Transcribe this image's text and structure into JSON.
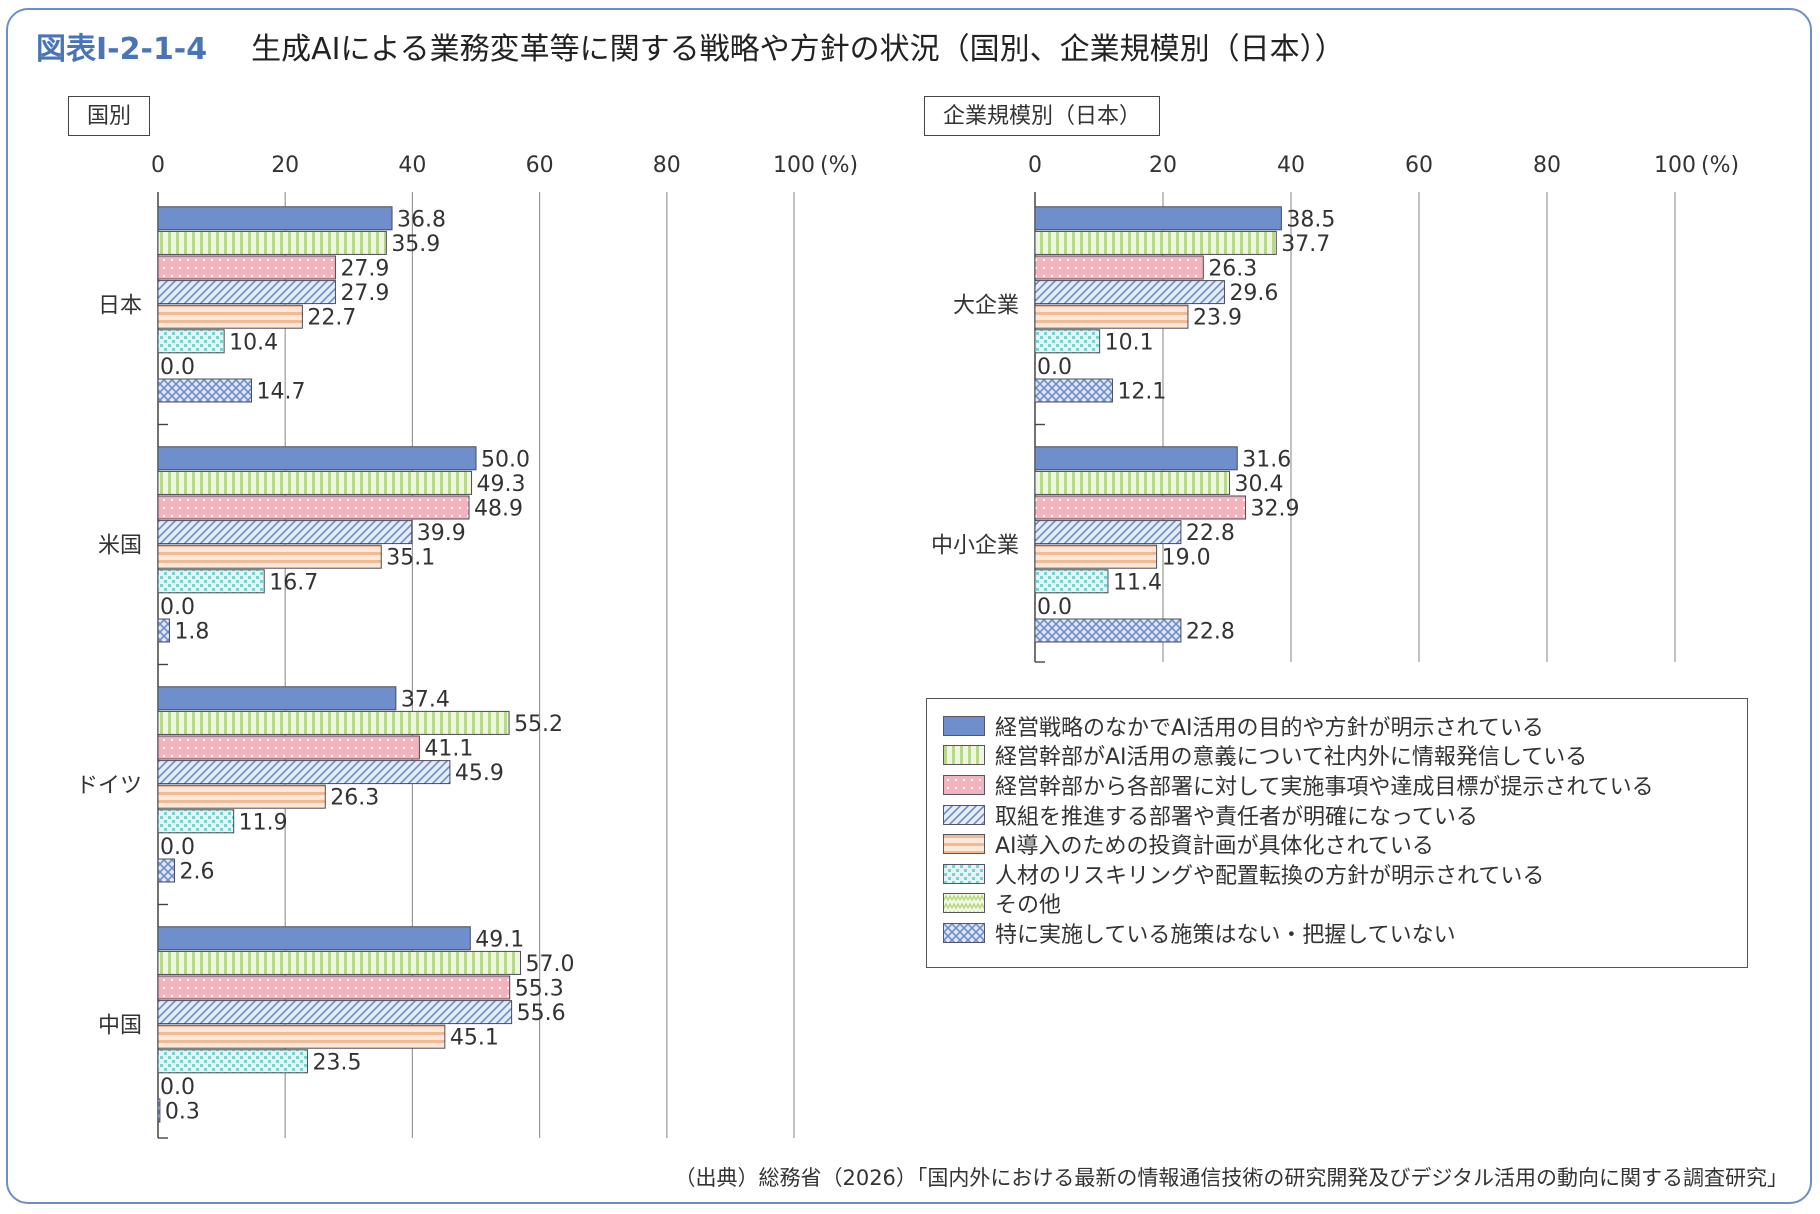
{
  "figure": {
    "number": "図表Ⅰ-2-1-4",
    "title": "生成AIによる業務変革等に関する戦略や方針の状況（国別、企業規模別（日本））",
    "source": "（出典）総務省（2026）「国内外における最新の情報通信技術の研究開発及びデジタル活用の動向に関する調査研究」"
  },
  "legend": {
    "items": [
      {
        "label": "経営戦略のなかでAI活用の目的や方針が明示されている",
        "color": "#6f8fcc"
      },
      {
        "label": "経営幹部がAI活用の意義について社内外に情報発信している",
        "color": "#b8d98a"
      },
      {
        "label": "経営幹部から各部署に対して実施事項や達成目標が提示されている",
        "color": "#f2b3bc"
      },
      {
        "label": "取組を推進する部署や責任者が明確になっている",
        "color": "#aac0e8"
      },
      {
        "label": "AI導入のための投資計画が具体化されている",
        "color": "#f3b995"
      },
      {
        "label": "人材のリスキリングや配置転換の方針が明示されている",
        "color": "#7fd0cf"
      },
      {
        "label": "その他",
        "color": "#b7d97a"
      },
      {
        "label": "特に実施している施策はない・把握していない",
        "color": "#6f8fcc"
      }
    ]
  },
  "chart_data": [
    {
      "type": "bar",
      "orientation": "horizontal",
      "title": "国別",
      "axis_unit": "(%)",
      "xlim": [
        0,
        100
      ],
      "ticks": [
        0,
        20,
        40,
        60,
        80,
        100
      ],
      "tick_labels": [
        "0",
        "20",
        "40",
        "60",
        "80",
        "100"
      ],
      "grid": true,
      "legend_position": "right",
      "categories": [
        "日本",
        "米国",
        "ドイツ",
        "中国"
      ],
      "series": [
        {
          "name": "経営戦略のなかでAI活用の目的や方針が明示されている",
          "values": [
            36.8,
            50.0,
            37.4,
            49.1
          ]
        },
        {
          "name": "経営幹部がAI活用の意義について社内外に情報発信している",
          "values": [
            35.9,
            49.3,
            55.2,
            57.0
          ]
        },
        {
          "name": "経営幹部から各部署に対して実施事項や達成目標が提示されている",
          "values": [
            27.9,
            48.9,
            41.1,
            55.3
          ]
        },
        {
          "name": "取組を推進する部署や責任者が明確になっている",
          "values": [
            27.9,
            39.9,
            45.9,
            55.6
          ]
        },
        {
          "name": "AI導入のための投資計画が具体化されている",
          "values": [
            22.7,
            35.1,
            26.3,
            45.1
          ]
        },
        {
          "name": "人材のリスキリングや配置転換の方針が明示されている",
          "values": [
            10.4,
            16.7,
            11.9,
            23.5
          ]
        },
        {
          "name": "その他",
          "values": [
            0.0,
            0.0,
            0.0,
            0.0
          ]
        },
        {
          "name": "特に実施している施策はない・把握していない",
          "values": [
            14.7,
            1.8,
            2.6,
            0.3
          ]
        }
      ]
    },
    {
      "type": "bar",
      "orientation": "horizontal",
      "title": "企業規模別（日本）",
      "axis_unit": "(%)",
      "xlim": [
        0,
        100
      ],
      "ticks": [
        0,
        20,
        40,
        60,
        80,
        100
      ],
      "tick_labels": [
        "0",
        "20",
        "40",
        "60",
        "80",
        "100"
      ],
      "grid": true,
      "legend_position": "below",
      "categories": [
        "大企業",
        "中小企業"
      ],
      "series": [
        {
          "name": "経営戦略のなかでAI活用の目的や方針が明示されている",
          "values": [
            38.5,
            31.6
          ]
        },
        {
          "name": "経営幹部がAI活用の意義について社内外に情報発信している",
          "values": [
            37.7,
            30.4
          ]
        },
        {
          "name": "経営幹部から各部署に対して実施事項や達成目標が提示されている",
          "values": [
            26.3,
            32.9
          ]
        },
        {
          "name": "取組を推進する部署や責任者が明確になっている",
          "values": [
            29.6,
            22.8
          ]
        },
        {
          "name": "AI導入のための投資計画が具体化されている",
          "values": [
            23.9,
            19.0
          ]
        },
        {
          "name": "人材のリスキリングや配置転換の方針が明示されている",
          "values": [
            10.1,
            11.4
          ]
        },
        {
          "name": "その他",
          "values": [
            0.0,
            0.0
          ]
        },
        {
          "name": "特に実施している施策はない・把握していない",
          "values": [
            12.1,
            22.8
          ]
        }
      ]
    }
  ]
}
